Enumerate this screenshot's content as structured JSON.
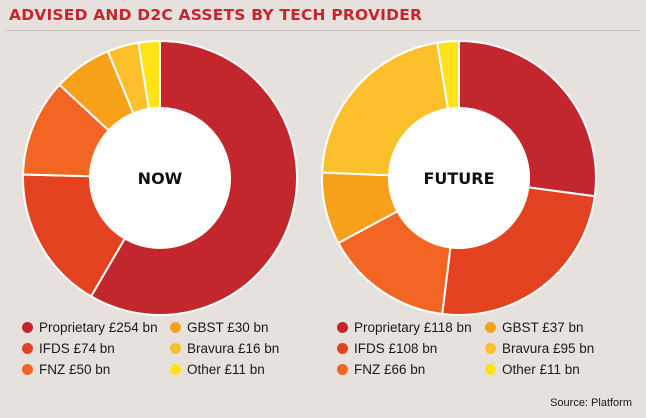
{
  "title": "ADVISED AND D2C ASSETS BY TECH PROVIDER",
  "source": "Source: Platform",
  "chart_data": [
    {
      "type": "pie",
      "title": "NOW",
      "categories": [
        "Proprietary",
        "IFDS",
        "FNZ",
        "GBST",
        "Bravura",
        "Other"
      ],
      "values": [
        254,
        74,
        50,
        30,
        16,
        11
      ],
      "unit": "£ bn",
      "colors": [
        "#c1272d",
        "#e2421f",
        "#f26522",
        "#f7a11a",
        "#fcc02c",
        "#ffe21a"
      ],
      "legend_labels": [
        "Proprietary £254 bn",
        "IFDS £74 bn",
        "FNZ £50 bn",
        "GBST £30 bn",
        "Bravura £16 bn",
        "Other £11 bn"
      ]
    },
    {
      "type": "pie",
      "title": "FUTURE",
      "categories": [
        "Proprietary",
        "IFDS",
        "FNZ",
        "GBST",
        "Bravura",
        "Other"
      ],
      "values": [
        118,
        108,
        66,
        37,
        95,
        11
      ],
      "unit": "£ bn",
      "colors": [
        "#c1272d",
        "#e2421f",
        "#f26522",
        "#f7a11a",
        "#fcc02c",
        "#ffe21a"
      ],
      "legend_labels": [
        "Proprietary £118 bn",
        "IFDS £108 bn",
        "FNZ £66 bn",
        "GBST £37 bn",
        "Bravura £95 bn",
        "Other £11 bn"
      ]
    }
  ]
}
